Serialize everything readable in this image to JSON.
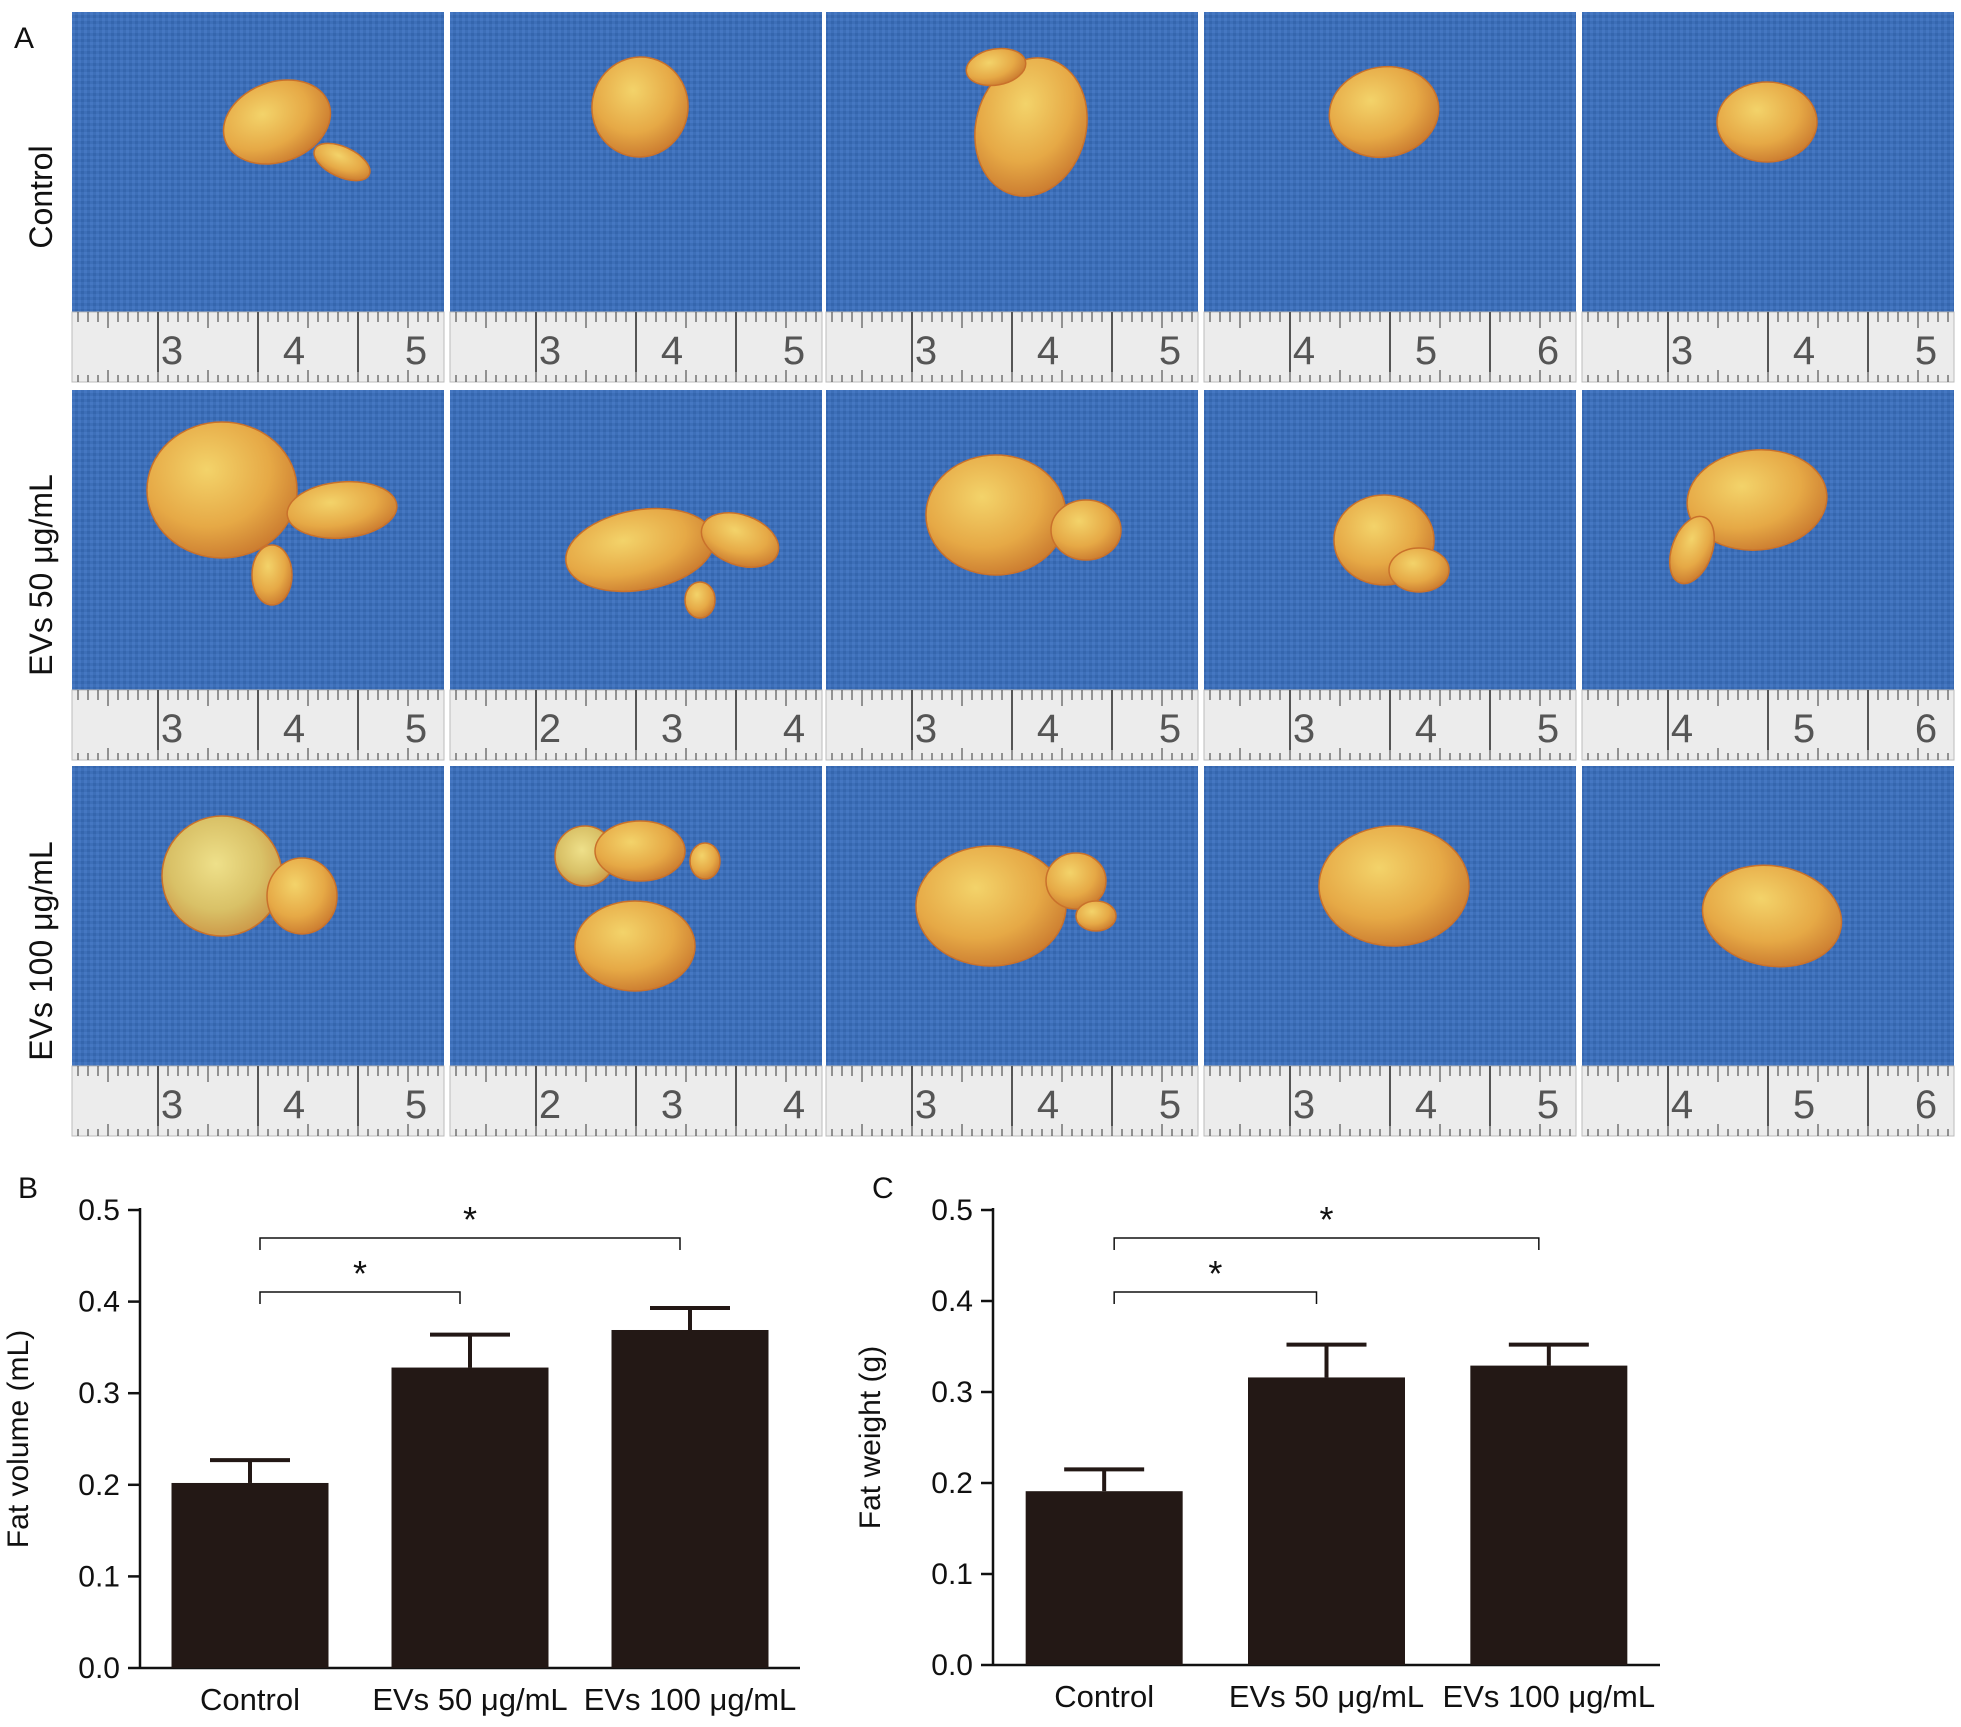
{
  "panel_a": {
    "letter": "A",
    "rows": [
      {
        "label": "Control",
        "rulers": [
          [
            "3",
            "4",
            "5"
          ],
          [
            "3",
            "4",
            "5"
          ],
          [
            "3",
            "4",
            "5"
          ],
          [
            "4",
            "5",
            "6"
          ],
          [
            "3",
            "4",
            "5"
          ]
        ]
      },
      {
        "label": "EVs 50 μg/mL",
        "rulers": [
          [
            "3",
            "4",
            "5"
          ],
          [
            "2",
            "3",
            "4"
          ],
          [
            "3",
            "4",
            "5"
          ],
          [
            "3",
            "4",
            "5"
          ],
          [
            "4",
            "5",
            "6"
          ]
        ]
      },
      {
        "label": "EVs 100 μg/mL",
        "rulers": [
          [
            "3",
            "4",
            "5"
          ],
          [
            "2",
            "3",
            "4"
          ],
          [
            "3",
            "4",
            "5"
          ],
          [
            "3",
            "4",
            "5"
          ],
          [
            "4",
            "5",
            "6"
          ]
        ]
      }
    ],
    "colors": {
      "background_cloth": "#3d6fb8",
      "fat_tissue": "#e8b24a",
      "ruler": "#eeeeee"
    }
  },
  "chart_data": [
    {
      "panel_letter": "B",
      "type": "bar",
      "categories": [
        "Control",
        "EVs 50 μg/mL",
        "EVs 100 μg/mL"
      ],
      "values": [
        0.202,
        0.328,
        0.369
      ],
      "errors": [
        0.025,
        0.036,
        0.024
      ],
      "ylabel": "Fat volume (mL)",
      "ylim": [
        0.0,
        0.5
      ],
      "yticks": [
        "0.0",
        "0.1",
        "0.2",
        "0.3",
        "0.4",
        "0.5"
      ],
      "bar_color": "#231815",
      "significance": [
        {
          "from": 0,
          "to": 1,
          "label": "*"
        },
        {
          "from": 0,
          "to": 2,
          "label": "*"
        }
      ]
    },
    {
      "panel_letter": "C",
      "type": "bar",
      "categories": [
        "Control",
        "EVs 50 μg/mL",
        "EVs 100 μg/mL"
      ],
      "values": [
        0.191,
        0.316,
        0.329
      ],
      "errors": [
        0.024,
        0.036,
        0.023
      ],
      "ylabel": "Fat weight (g)",
      "ylim": [
        0.0,
        0.5
      ],
      "yticks": [
        "0.0",
        "0.1",
        "0.2",
        "0.3",
        "0.4",
        "0.5"
      ],
      "bar_color": "#231815",
      "significance": [
        {
          "from": 0,
          "to": 1,
          "label": "*"
        },
        {
          "from": 0,
          "to": 2,
          "label": "*"
        }
      ]
    }
  ]
}
